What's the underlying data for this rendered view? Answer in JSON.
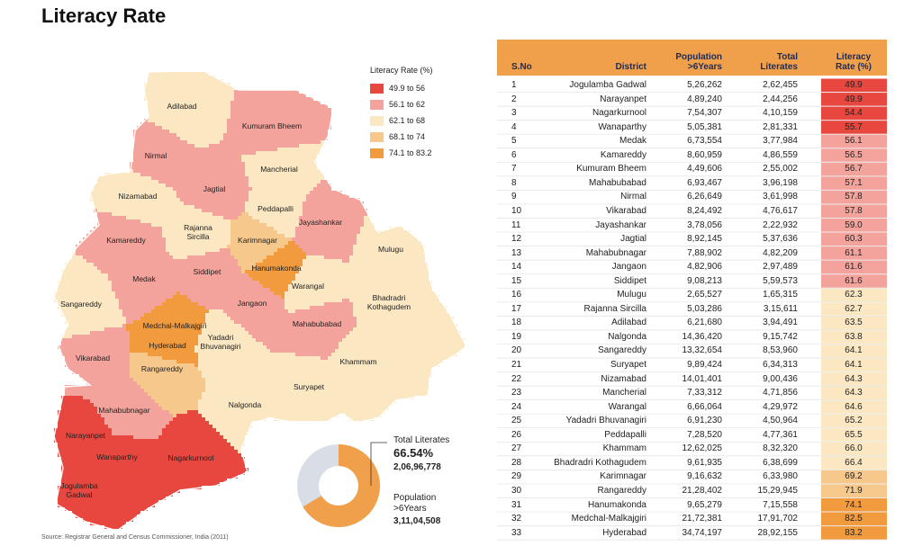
{
  "title": "Literacy Rate",
  "source": "Source: Registrar General and Census Commissioner, India (2011)",
  "legend": {
    "title": "Literacy Rate (%)",
    "items": [
      {
        "label": "49.9 to 56",
        "from": 49.9,
        "to": 56,
        "color": "#e8473f"
      },
      {
        "label": "56.1 to 62",
        "from": 56.1,
        "to": 62,
        "color": "#f4a39c"
      },
      {
        "label": "62.1 to 68",
        "from": 62.1,
        "to": 68,
        "color": "#fbe8c3"
      },
      {
        "label": "68.1 to 74",
        "from": 68.1,
        "to": 74,
        "color": "#f6c88c"
      },
      {
        "label": "74.1 to 83.2",
        "from": 74.1,
        "to": 83.2,
        "color": "#f19a3e"
      }
    ]
  },
  "map": {
    "labels": [
      "Adilabad",
      "Kumuram Bheem",
      "Nirmal",
      "Mancherial",
      "Nizamabad",
      "Jagtial",
      "Peddapalli",
      "Jayashankar",
      "Kamareddy",
      "Rajanna Sircilla",
      "Karimnagar",
      "Mulugu",
      "Medak",
      "Siddipet",
      "Hanumakonda",
      "Warangal",
      "Bhadradri Kothagudem",
      "Sangareddy",
      "Jangaon",
      "Medchal-Malkajgiri",
      "Mahabubabad",
      "Yadadri Bhuvanagiri",
      "Hyderabad",
      "Vikarabad",
      "Khammam",
      "Rangareddy",
      "Suryapet",
      "Nalgonda",
      "Mahabubnagar",
      "Narayanpet",
      "Nagarkurnool",
      "Wanaparthy",
      "Jogulamba Gadwal"
    ]
  },
  "donut": {
    "values": [
      66.54
    ],
    "value_labels": [
      "66.54%"
    ],
    "color": "#f0a04b",
    "rest_color": "#d9dde6",
    "literates_label": "Total Literates",
    "literates": "2,06,96,778",
    "population_label": "Population >6Years",
    "population": "3,11,04,508"
  },
  "table": {
    "header": [
      "S.No",
      "District",
      "Population >6Years",
      "Total Literates",
      "Literacy Rate (%)"
    ],
    "rows": [
      [
        "1",
        "Jogulamba Gadwal",
        "5,26,262",
        "2,62,455",
        "49.9"
      ],
      [
        "2",
        "Narayanpet",
        "4,89,240",
        "2,44,256",
        "49.9"
      ],
      [
        "3",
        "Nagarkurnool",
        "7,54,307",
        "4,10,159",
        "54.4"
      ],
      [
        "4",
        "Wanaparthy",
        "5,05,381",
        "2,81,331",
        "55.7"
      ],
      [
        "5",
        "Medak",
        "6,73,554",
        "3,77,984",
        "56.1"
      ],
      [
        "6",
        "Kamareddy",
        "8,60,959",
        "4,86,559",
        "56.5"
      ],
      [
        "7",
        "Kumuram Bheem",
        "4,49,606",
        "2,55,002",
        "56.7"
      ],
      [
        "8",
        "Mahabubabad",
        "6,93,467",
        "3,96,198",
        "57.1"
      ],
      [
        "9",
        "Nirmal",
        "6,26,649",
        "3,61,998",
        "57.8"
      ],
      [
        "10",
        "Vikarabad",
        "8,24,492",
        "4,76,617",
        "57.8"
      ],
      [
        "11",
        "Jayashankar",
        "3,78,056",
        "2,22,932",
        "59.0"
      ],
      [
        "12",
        "Jagtial",
        "8,92,145",
        "5,37,636",
        "60.3"
      ],
      [
        "13",
        "Mahabubnagar",
        "7,88,902",
        "4,82,209",
        "61.1"
      ],
      [
        "14",
        "Jangaon",
        "4,82,906",
        "2,97,489",
        "61.6"
      ],
      [
        "15",
        "Siddipet",
        "9,08,213",
        "5,59,573",
        "61.6"
      ],
      [
        "16",
        "Mulugu",
        "2,65,527",
        "1,65,315",
        "62.3"
      ],
      [
        "17",
        "Rajanna Sircilla",
        "5,03,286",
        "3,15,611",
        "62.7"
      ],
      [
        "18",
        "Adilabad",
        "6,21,680",
        "3,94,491",
        "63.5"
      ],
      [
        "19",
        "Nalgonda",
        "14,36,420",
        "9,15,742",
        "63.8"
      ],
      [
        "20",
        "Sangareddy",
        "13,32,654",
        "8,53,960",
        "64.1"
      ],
      [
        "21",
        "Suryapet",
        "9,89,424",
        "6,34,313",
        "64.1"
      ],
      [
        "22",
        "Nizamabad",
        "14,01,401",
        "9,00,436",
        "64.3"
      ],
      [
        "23",
        "Mancherial",
        "7,33,312",
        "4,71,856",
        "64.3"
      ],
      [
        "24",
        "Warangal",
        "6,66,064",
        "4,29,972",
        "64.6"
      ],
      [
        "25",
        "Yadadri Bhuvanagiri",
        "6,91,230",
        "4,50,964",
        "65.2"
      ],
      [
        "26",
        "Peddapalli",
        "7,28,520",
        "4,77,361",
        "65.5"
      ],
      [
        "27",
        "Khammam",
        "12,62,025",
        "8,32,320",
        "66.0"
      ],
      [
        "28",
        "Bhadradri Kothagudem",
        "9,61,935",
        "6,38,699",
        "66.4"
      ],
      [
        "29",
        "Karimnagar",
        "9,16,632",
        "6,33,980",
        "69.2"
      ],
      [
        "30",
        "Rangareddy",
        "21,28,402",
        "15,29,945",
        "71.9"
      ],
      [
        "31",
        "Hanumakonda",
        "9,65,279",
        "7,15,558",
        "74.1"
      ],
      [
        "32",
        "Medchal-Malkajgiri",
        "21,72,381",
        "17,91,702",
        "82.5"
      ],
      [
        "33",
        "Hyderabad",
        "34,74,197",
        "28,92,155",
        "83.2"
      ]
    ]
  }
}
